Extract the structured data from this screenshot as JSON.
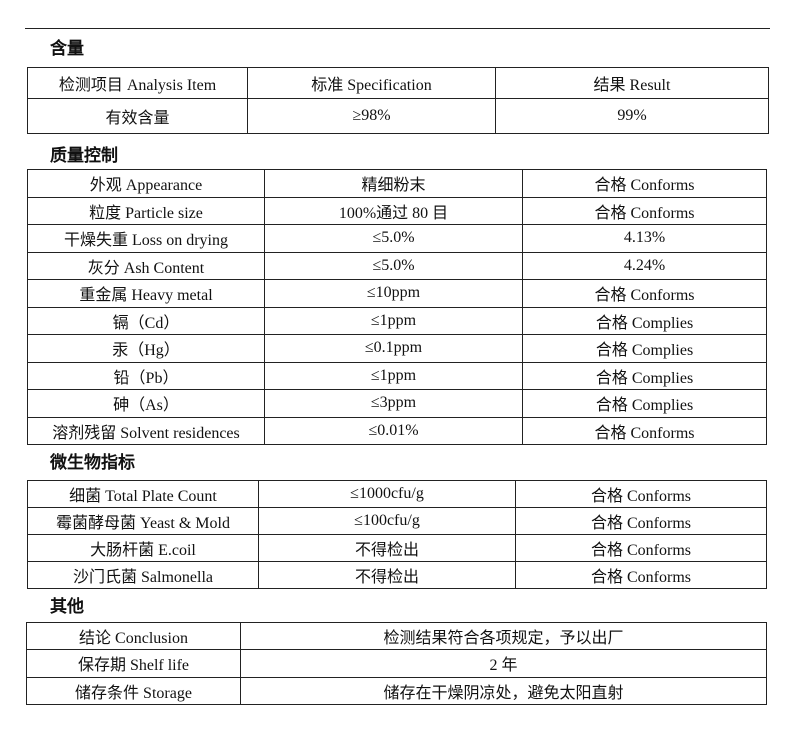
{
  "sections": {
    "content": {
      "title": "含量",
      "header": [
        "检测项目  Analysis Item",
        "标准    Specification",
        "结果  Result"
      ],
      "rows": [
        [
          "有效含量",
          "≥98%",
          "99%"
        ]
      ]
    },
    "quality": {
      "title": "质量控制",
      "rows": [
        [
          "外观  Appearance",
          "精细粉末",
          "合格 Conforms"
        ],
        [
          "粒度  Particle size",
          "100%通过 80 目",
          "合格 Conforms"
        ],
        [
          "干燥失重 Loss on drying",
          "≤5.0%",
          "4.13%"
        ],
        [
          "灰分 Ash Content",
          "≤5.0%",
          "4.24%"
        ],
        [
          "重金属  Heavy metal",
          "≤10ppm",
          "合格 Conforms"
        ],
        [
          "镉（Cd）",
          "≤1ppm",
          "合格 Complies"
        ],
        [
          "汞（Hg）",
          "≤0.1ppm",
          "合格 Complies"
        ],
        [
          "铅（Pb）",
          "≤1ppm",
          "合格 Complies"
        ],
        [
          "砷（As）",
          "≤3ppm",
          "合格 Complies"
        ],
        [
          "溶剂残留 Solvent residences",
          "≤0.01%",
          "合格 Conforms"
        ]
      ]
    },
    "micro": {
      "title": "微生物指标",
      "rows": [
        [
          "细菌  Total Plate Count",
          "≤1000cfu/g",
          "合格 Conforms"
        ],
        [
          "霉菌酵母菌  Yeast & Mold",
          "≤100cfu/g",
          "合格 Conforms"
        ],
        [
          "大肠杆菌    E.coil",
          "不得检出",
          "合格 Conforms"
        ],
        [
          "沙门氏菌    Salmonella",
          "不得检出",
          "合格 Conforms"
        ]
      ]
    },
    "other": {
      "title": "其他",
      "rows": [
        [
          "结论  Conclusion",
          "检测结果符合各项规定，予以出厂"
        ],
        [
          "保存期  Shelf life",
          "2 年"
        ],
        [
          "储存条件 Storage",
          "储存在干燥阴凉处，避免太阳直射"
        ]
      ]
    }
  }
}
